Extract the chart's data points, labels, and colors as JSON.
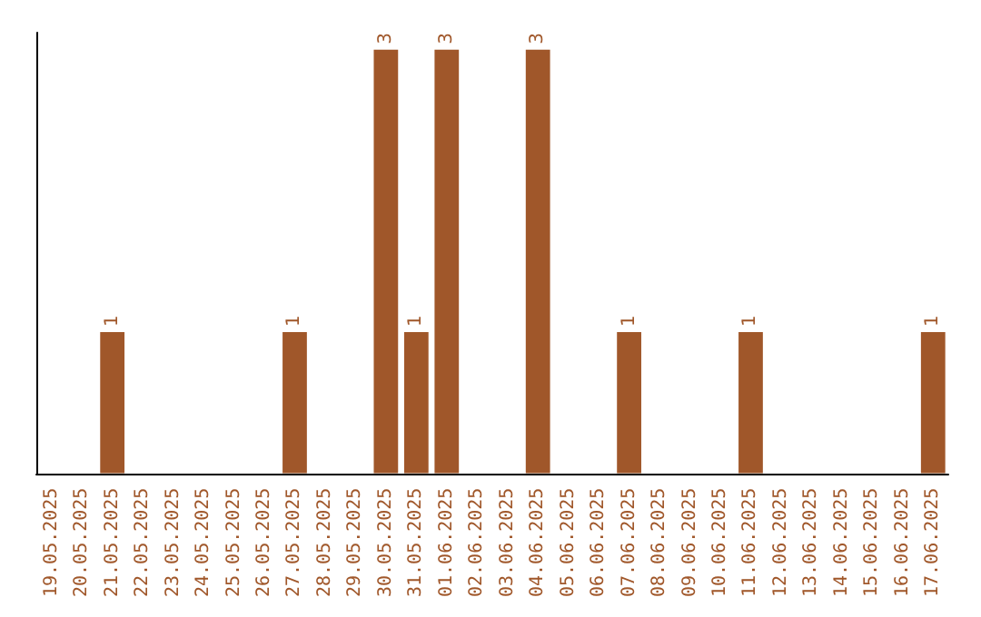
{
  "chart_data": {
    "type": "bar",
    "categories": [
      "19.05.2025",
      "20.05.2025",
      "21.05.2025",
      "22.05.2025",
      "23.05.2025",
      "24.05.2025",
      "25.05.2025",
      "26.05.2025",
      "27.05.2025",
      "28.05.2025",
      "29.05.2025",
      "30.05.2025",
      "31.05.2025",
      "01.06.2025",
      "02.06.2025",
      "03.06.2025",
      "04.06.2025",
      "05.06.2025",
      "06.06.2025",
      "07.06.2025",
      "08.06.2025",
      "09.06.2025",
      "10.06.2025",
      "11.06.2025",
      "12.06.2025",
      "13.06.2025",
      "14.06.2025",
      "15.06.2025",
      "16.06.2025",
      "17.06.2025"
    ],
    "values": [
      0,
      0,
      1,
      0,
      0,
      0,
      0,
      0,
      1,
      0,
      0,
      3,
      1,
      3,
      0,
      0,
      3,
      0,
      0,
      1,
      0,
      0,
      0,
      1,
      0,
      0,
      0,
      0,
      0,
      1
    ],
    "value_labels": [
      null,
      null,
      "1",
      null,
      null,
      null,
      null,
      null,
      "1",
      null,
      null,
      "3",
      "1",
      "3",
      null,
      null,
      "3",
      null,
      null,
      "1",
      null,
      null,
      null,
      "1",
      null,
      null,
      null,
      null,
      null,
      "1"
    ],
    "color": "#a0572a",
    "ylim": [
      0,
      3.12
    ],
    "tick_labels": "x",
    "grid": false
  }
}
